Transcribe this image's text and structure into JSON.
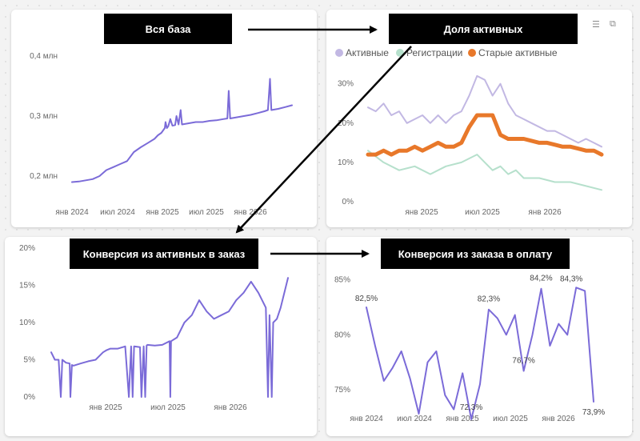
{
  "callouts": {
    "c1": "Вся база",
    "c2": "Доля активных",
    "c3": "Конверсия из активных в заказ",
    "c4": "Конверсия из заказа в оплату"
  },
  "icons": [
    "filter-icon",
    "expand-icon"
  ],
  "colors": {
    "purple": "#7b6bd8",
    "lavender": "#c2b8e3",
    "mint": "#b6e0cc",
    "orange": "#e8782a"
  },
  "chart_data": [
    {
      "id": "base",
      "type": "line",
      "title": "",
      "y_ticks": [
        "0,2 млн",
        "0,3 млн",
        "0,4 млн"
      ],
      "x_ticks": [
        "янв 2024",
        "июл 2024",
        "янв 2025",
        "июл 2025",
        "янв 2026"
      ],
      "ylim": [
        0.18,
        0.42
      ],
      "xlim": [
        0,
        32
      ],
      "series": [
        {
          "color": "#7b6bd8",
          "points": [
            [
              0,
              0.19
            ],
            [
              1,
              0.191
            ],
            [
              2,
              0.193
            ],
            [
              3,
              0.195
            ],
            [
              4,
              0.2
            ],
            [
              5,
              0.21
            ],
            [
              6,
              0.215
            ],
            [
              7,
              0.22
            ],
            [
              8,
              0.225
            ],
            [
              9,
              0.24
            ],
            [
              10,
              0.248
            ],
            [
              11,
              0.255
            ],
            [
              12,
              0.262
            ],
            [
              12.5,
              0.268
            ],
            [
              13,
              0.272
            ],
            [
              13.5,
              0.28
            ],
            [
              13.6,
              0.29
            ],
            [
              13.8,
              0.28
            ],
            [
              14,
              0.283
            ],
            [
              14.3,
              0.295
            ],
            [
              14.6,
              0.284
            ],
            [
              15,
              0.285
            ],
            [
              15.2,
              0.3
            ],
            [
              15.5,
              0.286
            ],
            [
              15.8,
              0.31
            ],
            [
              16,
              0.286
            ],
            [
              17,
              0.288
            ],
            [
              18,
              0.29
            ],
            [
              19,
              0.29
            ],
            [
              20,
              0.292
            ],
            [
              21,
              0.293
            ],
            [
              22,
              0.295
            ],
            [
              22.6,
              0.296
            ],
            [
              22.8,
              0.342
            ],
            [
              23,
              0.296
            ],
            [
              24,
              0.298
            ],
            [
              25,
              0.3
            ],
            [
              26,
              0.302
            ],
            [
              27,
              0.305
            ],
            [
              28,
              0.308
            ],
            [
              28.5,
              0.31
            ],
            [
              28.8,
              0.362
            ],
            [
              29,
              0.31
            ],
            [
              30,
              0.312
            ],
            [
              31,
              0.315
            ],
            [
              32,
              0.318
            ]
          ]
        }
      ]
    },
    {
      "id": "active",
      "type": "line",
      "title": "",
      "legend": [
        "Активные",
        "Регистрации",
        "Старые активные"
      ],
      "y_ticks": [
        "0%",
        "10%",
        "20%",
        "30%"
      ],
      "x_ticks": [
        "янв 2025",
        "июл 2025",
        "янв 2026"
      ],
      "ylim": [
        0,
        33
      ],
      "xlim": [
        0,
        30
      ],
      "series": [
        {
          "name": "Активные",
          "color": "#c2b8e3",
          "points": [
            [
              0,
              24
            ],
            [
              1,
              23
            ],
            [
              2,
              25
            ],
            [
              3,
              22
            ],
            [
              4,
              23
            ],
            [
              5,
              20
            ],
            [
              6,
              21
            ],
            [
              7,
              22
            ],
            [
              8,
              20
            ],
            [
              9,
              22
            ],
            [
              10,
              20
            ],
            [
              11,
              22
            ],
            [
              12,
              23
            ],
            [
              13,
              27
            ],
            [
              14,
              32
            ],
            [
              15,
              31
            ],
            [
              16,
              27
            ],
            [
              17,
              30
            ],
            [
              18,
              25
            ],
            [
              19,
              22
            ],
            [
              20,
              21
            ],
            [
              21,
              20
            ],
            [
              22,
              19
            ],
            [
              23,
              18
            ],
            [
              24,
              18
            ],
            [
              25,
              17
            ],
            [
              26,
              16
            ],
            [
              27,
              15
            ],
            [
              28,
              16
            ],
            [
              29,
              15
            ],
            [
              30,
              14
            ]
          ]
        },
        {
          "name": "Регистрации",
          "color": "#b6e0cc",
          "points": [
            [
              0,
              13
            ],
            [
              2,
              10
            ],
            [
              4,
              8
            ],
            [
              6,
              9
            ],
            [
              8,
              7
            ],
            [
              10,
              9
            ],
            [
              12,
              10
            ],
            [
              13,
              11
            ],
            [
              14,
              12
            ],
            [
              15,
              10
            ],
            [
              16,
              8
            ],
            [
              17,
              9
            ],
            [
              18,
              7
            ],
            [
              19,
              8
            ],
            [
              20,
              6
            ],
            [
              22,
              6
            ],
            [
              24,
              5
            ],
            [
              26,
              5
            ],
            [
              28,
              4
            ],
            [
              30,
              3
            ]
          ]
        },
        {
          "name": "Старые активные",
          "color": "#e8782a",
          "points": [
            [
              0,
              12
            ],
            [
              1,
              12
            ],
            [
              2,
              13
            ],
            [
              3,
              12
            ],
            [
              4,
              13
            ],
            [
              5,
              13
            ],
            [
              6,
              14
            ],
            [
              7,
              13
            ],
            [
              8,
              14
            ],
            [
              9,
              15
            ],
            [
              10,
              14
            ],
            [
              11,
              14
            ],
            [
              12,
              15
            ],
            [
              13,
              19
            ],
            [
              14,
              22
            ],
            [
              15,
              22
            ],
            [
              16,
              22
            ],
            [
              17,
              17
            ],
            [
              18,
              16
            ],
            [
              19,
              16
            ],
            [
              20,
              16
            ],
            [
              21,
              15.5
            ],
            [
              22,
              15
            ],
            [
              23,
              15
            ],
            [
              24,
              14.5
            ],
            [
              25,
              14
            ],
            [
              26,
              14
            ],
            [
              27,
              13.5
            ],
            [
              28,
              13
            ],
            [
              29,
              13
            ],
            [
              30,
              12
            ]
          ]
        }
      ]
    },
    {
      "id": "conv-order",
      "type": "line",
      "title": "",
      "y_ticks": [
        "0%",
        "5%",
        "10%",
        "15%",
        "20%"
      ],
      "x_ticks": [
        "янв 2025",
        "июл 2025",
        "янв 2026"
      ],
      "ylim": [
        0,
        20
      ],
      "xlim": [
        0,
        32
      ],
      "series": [
        {
          "color": "#7b6bd8",
          "points": [
            [
              0,
              6
            ],
            [
              0.5,
              5
            ],
            [
              1,
              5
            ],
            [
              1.3,
              0
            ],
            [
              1.5,
              5
            ],
            [
              2,
              4.6
            ],
            [
              2.5,
              4.5
            ],
            [
              2.6,
              0
            ],
            [
              2.8,
              4.3
            ],
            [
              3,
              4.2
            ],
            [
              4,
              4.5
            ],
            [
              5,
              4.8
            ],
            [
              6,
              5
            ],
            [
              7,
              6
            ],
            [
              7.5,
              6.3
            ],
            [
              8,
              6.5
            ],
            [
              9,
              6.5
            ],
            [
              10,
              6.8
            ],
            [
              10.5,
              0
            ],
            [
              10.8,
              6.8
            ],
            [
              11,
              0
            ],
            [
              11.2,
              6.8
            ],
            [
              12,
              6.7
            ],
            [
              12.2,
              0
            ],
            [
              12.5,
              6.8
            ],
            [
              12.7,
              0
            ],
            [
              12.9,
              6.9
            ],
            [
              13,
              7
            ],
            [
              14,
              6.9
            ],
            [
              15,
              7
            ],
            [
              16,
              7.5
            ],
            [
              16.1,
              0
            ],
            [
              16.2,
              7.5
            ],
            [
              17,
              8
            ],
            [
              18,
              10
            ],
            [
              19,
              11
            ],
            [
              20,
              13
            ],
            [
              21,
              11.5
            ],
            [
              22,
              10.5
            ],
            [
              23,
              11
            ],
            [
              24,
              11.5
            ],
            [
              25,
              13
            ],
            [
              26,
              14
            ],
            [
              27,
              15.5
            ],
            [
              28,
              14
            ],
            [
              29,
              12
            ],
            [
              29.3,
              0
            ],
            [
              29.5,
              11
            ],
            [
              29.8,
              0
            ],
            [
              30,
              10
            ],
            [
              30.5,
              10.5
            ],
            [
              31,
              12
            ],
            [
              32,
              16
            ]
          ]
        }
      ]
    },
    {
      "id": "conv-pay",
      "type": "line",
      "title": "",
      "y_ticks": [
        "75%",
        "80%",
        "85%"
      ],
      "x_ticks": [
        "янв 2024",
        "июл 2024",
        "янв 2025",
        "июл 2025",
        "янв 2026"
      ],
      "ylim": [
        72,
        86
      ],
      "xlim": [
        0,
        26
      ],
      "data_labels": [
        "82,5%",
        "72,3%",
        "82,3%",
        "76,7%",
        "84,2%",
        "84,3%",
        "73,9%"
      ],
      "series": [
        {
          "color": "#7b6bd8",
          "points": [
            [
              0,
              82.5
            ],
            [
              1,
              79
            ],
            [
              2,
              75.8
            ],
            [
              3,
              77
            ],
            [
              4,
              78.5
            ],
            [
              5,
              76
            ],
            [
              6,
              72.8
            ],
            [
              7,
              77.5
            ],
            [
              8,
              78.5
            ],
            [
              9,
              74.5
            ],
            [
              10,
              73.2
            ],
            [
              11,
              76.5
            ],
            [
              12,
              72.3
            ],
            [
              13,
              75.5
            ],
            [
              14,
              82.3
            ],
            [
              15,
              81.5
            ],
            [
              16,
              80
            ],
            [
              17,
              81.8
            ],
            [
              18,
              76.7
            ],
            [
              19,
              80
            ],
            [
              20,
              84.2
            ],
            [
              21,
              79
            ],
            [
              22,
              81
            ],
            [
              23,
              80
            ],
            [
              24,
              84.3
            ],
            [
              25,
              84
            ],
            [
              26,
              73.9
            ]
          ]
        }
      ]
    }
  ]
}
